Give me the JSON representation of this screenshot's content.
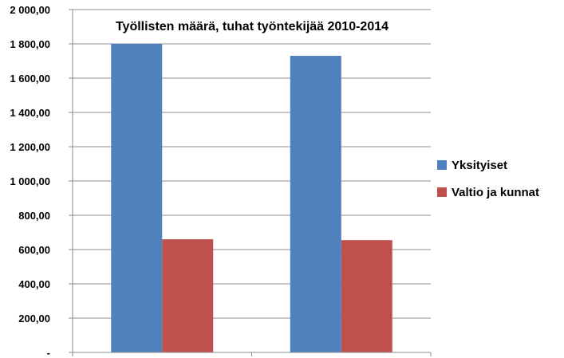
{
  "chart_data": {
    "type": "bar",
    "title": "Työllisten määrä, tuhat työntekijää 2010-2014",
    "xlabel": "",
    "ylabel": "",
    "categories": [
      "",
      ""
    ],
    "series": [
      {
        "name": "Yksityiset",
        "values": [
          1800,
          1730
        ],
        "color": "#4F81BD"
      },
      {
        "name": "Valtio ja kunnat",
        "values": [
          660,
          655
        ],
        "color": "#C0504D"
      }
    ],
    "ylim": [
      0,
      2000
    ],
    "yticks": [
      0,
      200,
      400,
      600,
      800,
      1000,
      1200,
      1400,
      1600,
      1800,
      2000
    ],
    "ytick_labels": [
      "-",
      "200,00",
      "400,00",
      "600,00",
      "800,00",
      "1 000,00",
      "1 200,00",
      "1 400,00",
      "1 600,00",
      "1 800,00",
      "2 000,00"
    ],
    "grid": true,
    "legend_position": "right"
  }
}
